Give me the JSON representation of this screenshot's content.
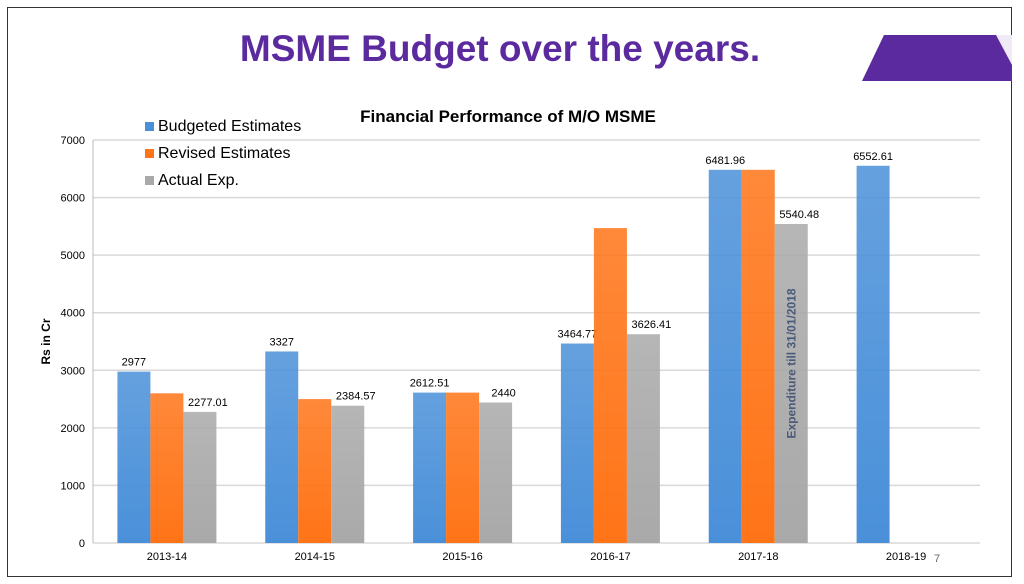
{
  "slide": {
    "title": "MSME Budget over the years.",
    "page_number": "7",
    "accent_color": "#5b2a9e"
  },
  "chart_data": {
    "type": "bar",
    "title": "Financial Performance of M/O MSME",
    "ylabel": "Rs in Cr",
    "xlabel": "",
    "ylim": [
      0,
      7000
    ],
    "yticks": [
      "0",
      "1000",
      "2000",
      "3000",
      "4000",
      "5000",
      "6000",
      "7000"
    ],
    "grid": true,
    "legend": "top-left",
    "categories": [
      "2013-14",
      "2014-15",
      "2015-16",
      "2016-17",
      "2017-18",
      "2018-19"
    ],
    "series": [
      {
        "name": "Budgeted Estimates",
        "color": "#4a90d9",
        "values": [
          2977,
          3327,
          2612.51,
          3464.77,
          6481.96,
          6552.61
        ],
        "labels": [
          "2977",
          "3327",
          "2612.51",
          "3464.77",
          "6481.96",
          "6552.61"
        ]
      },
      {
        "name": "Revised Estimates",
        "color": "#ff7417",
        "values": [
          2600,
          2500,
          2612.51,
          5470,
          6481.96,
          null
        ],
        "labels": [
          "",
          "",
          "",
          "",
          "",
          ""
        ]
      },
      {
        "name": "Actual Exp.",
        "color": "#a9a9a9",
        "values": [
          2277.01,
          2384.57,
          2440,
          3626.41,
          5540.48,
          null
        ],
        "labels": [
          "2277.01",
          "2384.57",
          "2440",
          "3626.41",
          "5540.48",
          ""
        ]
      }
    ],
    "annotation": "Expenditure till 31/01/2018"
  }
}
